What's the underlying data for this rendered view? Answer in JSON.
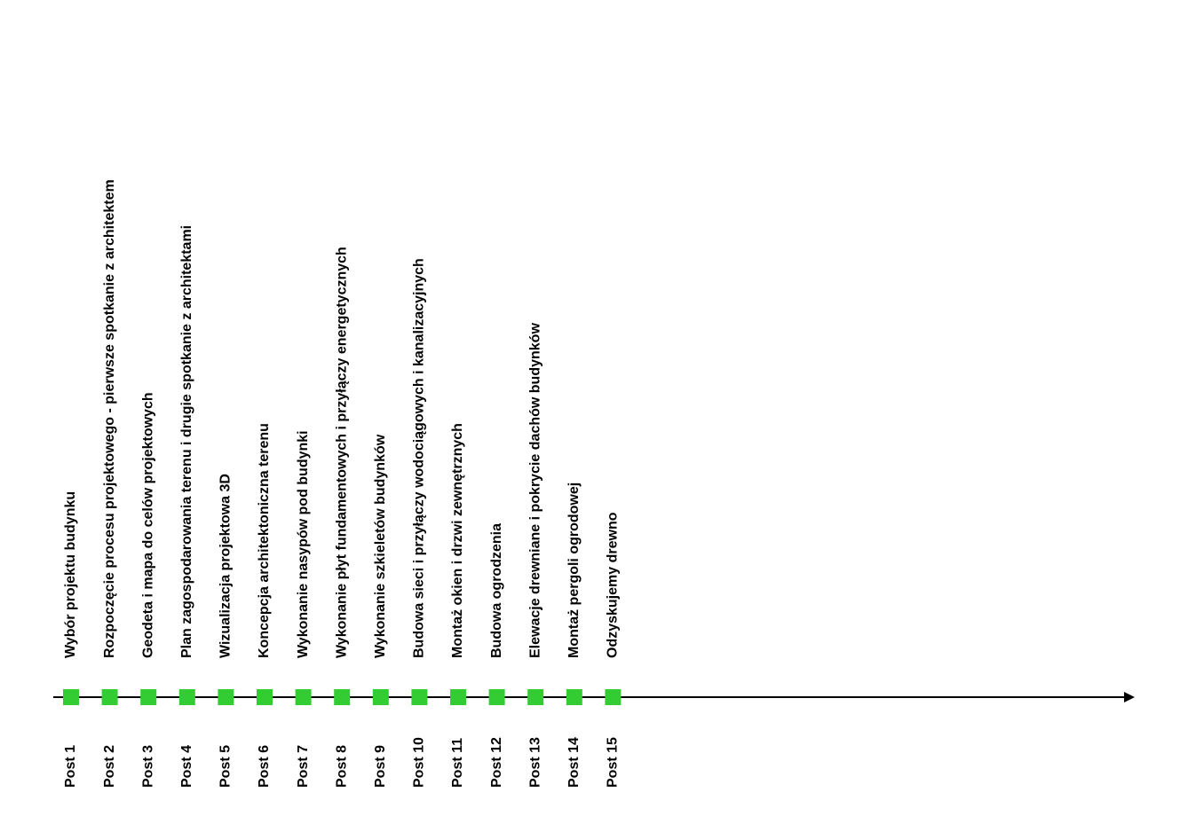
{
  "timeline": {
    "items": [
      {
        "label": "Wybór projektu budynku",
        "post": "Post 1"
      },
      {
        "label": "Rozpoczęcie procesu projektowego - pierwsze spotkanie z architektem",
        "post": "Post 2"
      },
      {
        "label": "Geodeta i mapa do celów projektowych",
        "post": "Post 3"
      },
      {
        "label": "Plan zagospodarowania terenu i drugie spotkanie z architektami",
        "post": "Post 4"
      },
      {
        "label": "Wizualizacja projektowa 3D",
        "post": "Post 5"
      },
      {
        "label": "Koncepcja architektoniczna terenu",
        "post": "Post 6"
      },
      {
        "label": "Wykonanie nasypów pod budynki",
        "post": "Post 7"
      },
      {
        "label": "Wykonanie płyt fundamentowych i przyłączy energetycznych",
        "post": "Post 8"
      },
      {
        "label": "Wykonanie szkieletów budynków",
        "post": "Post 9"
      },
      {
        "label": "Budowa sieci i przyłączy wodociągowych i kanalizacyjnych",
        "post": "Post 10"
      },
      {
        "label": "Montaż okien i drzwi zewnętrznych",
        "post": "Post 11"
      },
      {
        "label": "Budowa ogrodzenia",
        "post": "Post 12"
      },
      {
        "label": "Elewacje drewniane i pokrycie dachów budynków",
        "post": "Post 13"
      },
      {
        "label": "Montaż pergoli ogrodowej",
        "post": "Post 14"
      },
      {
        "label": "Odzyskujemy drewno",
        "post": "Post 15"
      }
    ]
  }
}
